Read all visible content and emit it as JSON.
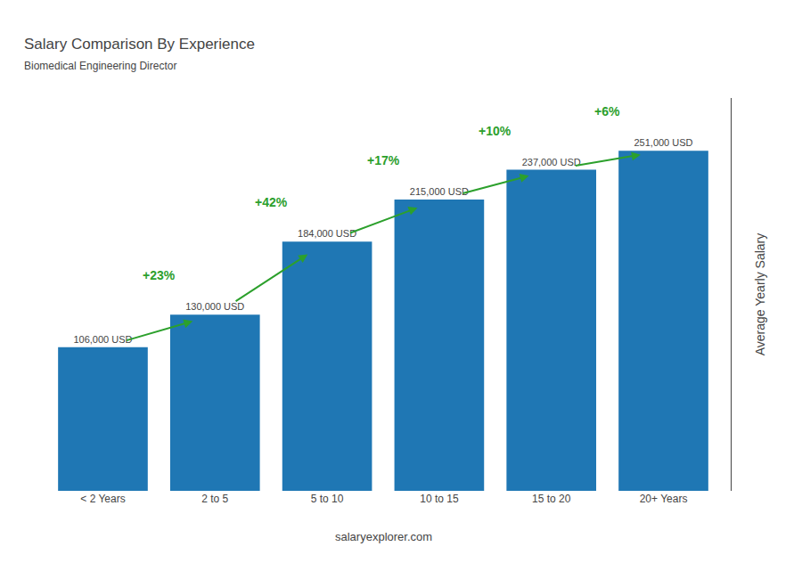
{
  "chart_data": {
    "type": "bar",
    "title": "Salary Comparison By Experience",
    "subtitle": "Biomedical Engineering Director",
    "ylabel": "Average Yearly Salary",
    "categories": [
      "< 2 Years",
      "2 to 5",
      "5 to 10",
      "10 to 15",
      "15 to 20",
      "20+ Years"
    ],
    "values": [
      106000,
      130000,
      184000,
      215000,
      237000,
      251000
    ],
    "value_labels": [
      "106,000 USD",
      "130,000 USD",
      "184,000 USD",
      "215,000 USD",
      "237,000 USD",
      "251,000 USD"
    ],
    "data_labels": true,
    "annotations": [
      "+23%",
      "+42%",
      "+17%",
      "+10%",
      "+6%"
    ],
    "watermark": "salaryexplorer.com",
    "ylim": [
      0,
      290000
    ],
    "tick_labels": "x",
    "grid": false
  }
}
